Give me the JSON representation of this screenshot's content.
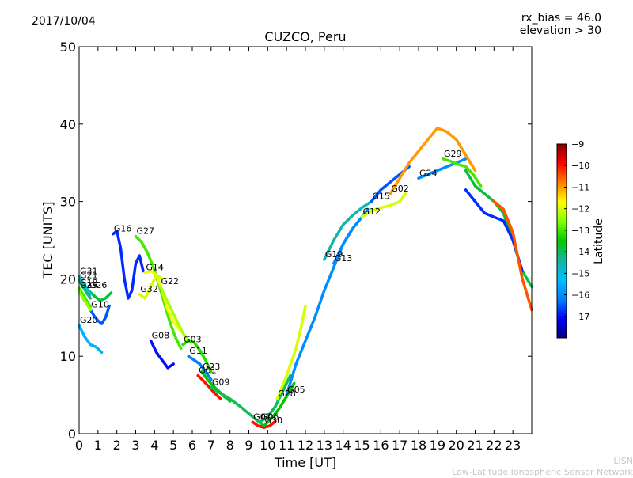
{
  "header": {
    "date": "2017/10/04",
    "title": "CUZCO, Peru",
    "rx_bias": "rx_bias = 46.0",
    "elevation": "elevation > 30"
  },
  "footer": {
    "org": "LISN",
    "org_full": "Low-Latitude Ionospheric Sensor Network"
  },
  "chart_data": {
    "type": "scatter",
    "xlabel": "Time [UT]",
    "ylabel": "TEC [UNITS]",
    "xlim": [
      0,
      24
    ],
    "ylim": [
      0,
      50
    ],
    "xticks": [
      0,
      1,
      2,
      3,
      4,
      5,
      6,
      7,
      8,
      9,
      10,
      11,
      12,
      13,
      14,
      15,
      16,
      17,
      18,
      19,
      20,
      21,
      22,
      23
    ],
    "yticks": [
      0,
      10,
      20,
      30,
      40,
      50
    ],
    "grid": false,
    "colorbar": {
      "label": "Latitude",
      "range": [
        -18,
        -9
      ],
      "ticks": [
        -9,
        -10,
        -11,
        -12,
        -13,
        -14,
        -15,
        -16,
        -17
      ],
      "colormap": [
        "#00007f",
        "#0000ff",
        "#007fff",
        "#00bfff",
        "#19b4a0",
        "#00c800",
        "#7fff00",
        "#ffff00",
        "#ff7f00",
        "#ff0000",
        "#7f0000"
      ]
    },
    "series": [
      {
        "name": "G20",
        "lat": -15.5,
        "x": [
          0.0,
          0.3,
          0.6,
          0.9,
          1.2
        ],
        "y": [
          14.0,
          12.5,
          11.5,
          11.2,
          10.5
        ]
      },
      {
        "name": "G10",
        "lat": -16.5,
        "x": [
          0.6,
          0.8,
          1.0,
          1.2,
          1.4,
          1.6
        ],
        "y": [
          16.0,
          15.2,
          14.6,
          14.2,
          15.0,
          16.5
        ]
      },
      {
        "name": "G26",
        "lat": -13.8,
        "x": [
          0.5,
          0.8,
          1.1,
          1.4,
          1.7
        ],
        "y": [
          18.5,
          17.8,
          17.2,
          17.5,
          18.2
        ]
      },
      {
        "name": "G31",
        "lat": -15.0,
        "x": [
          0.0,
          0.2,
          0.4,
          0.6
        ],
        "y": [
          20.3,
          19.5,
          18.8,
          18.0
        ]
      },
      {
        "name": "G21",
        "lat": -14.2,
        "x": [
          0.0,
          0.2,
          0.4,
          0.6
        ],
        "y": [
          19.8,
          19.0,
          18.2,
          17.5
        ]
      },
      {
        "name": "G18",
        "lat": -13.0,
        "x": [
          0.0,
          0.2,
          0.4,
          0.6
        ],
        "y": [
          18.8,
          18.0,
          17.2,
          16.4
        ]
      },
      {
        "name": "G25",
        "lat": -12.5,
        "x": [
          0.0,
          0.2,
          0.4,
          0.6
        ],
        "y": [
          18.5,
          17.5,
          16.8,
          16.0
        ]
      },
      {
        "name": "G16",
        "lat": -16.8,
        "x": [
          1.8,
          2.0,
          2.2,
          2.4,
          2.6,
          2.8,
          3.0,
          3.2,
          3.4
        ],
        "y": [
          25.8,
          26.2,
          24.0,
          20.0,
          17.5,
          18.5,
          22.0,
          23.0,
          21.0
        ]
      },
      {
        "name": "G27",
        "lat": -13.0,
        "x": [
          3.0,
          3.3,
          3.6,
          3.9,
          4.2,
          4.5,
          4.8,
          5.1,
          5.4
        ],
        "y": [
          25.5,
          24.8,
          23.5,
          21.8,
          19.5,
          17.0,
          14.5,
          12.5,
          11.0
        ]
      },
      {
        "name": "G14",
        "lat": -11.8,
        "x": [
          3.5,
          3.8,
          4.1,
          4.4,
          4.7,
          5.0,
          5.3
        ],
        "y": [
          20.8,
          21.0,
          20.5,
          18.5,
          16.0,
          14.5,
          13.5
        ]
      },
      {
        "name": "G32",
        "lat": -12.0,
        "x": [
          3.2,
          3.5,
          3.8,
          4.1,
          4.4
        ],
        "y": [
          18.0,
          17.5,
          19.0,
          20.5,
          20.0
        ]
      },
      {
        "name": "G22",
        "lat": -12.3,
        "x": [
          4.3,
          4.6,
          4.9,
          5.2,
          5.5,
          5.8
        ],
        "y": [
          19.0,
          17.5,
          16.0,
          14.5,
          13.0,
          12.0
        ]
      },
      {
        "name": "G08",
        "lat": -17.0,
        "x": [
          3.8,
          4.1,
          4.4,
          4.7,
          5.0
        ],
        "y": [
          12.0,
          10.5,
          9.5,
          8.5,
          9.0
        ]
      },
      {
        "name": "G03",
        "lat": -13.2,
        "x": [
          5.5,
          5.8,
          6.1,
          6.4,
          6.7,
          7.0
        ],
        "y": [
          11.5,
          12.0,
          11.8,
          10.8,
          9.5,
          8.0
        ]
      },
      {
        "name": "G11",
        "lat": -16.2,
        "x": [
          5.8,
          6.1,
          6.4,
          6.7,
          7.0
        ],
        "y": [
          10.0,
          9.5,
          9.0,
          8.0,
          7.0
        ]
      },
      {
        "name": "G01",
        "lat": -10.0,
        "x": [
          6.3,
          6.6,
          6.9,
          7.2,
          7.5
        ],
        "y": [
          7.5,
          6.8,
          6.0,
          5.2,
          4.5
        ]
      },
      {
        "name": "G23",
        "lat": -13.5,
        "x": [
          6.5,
          6.8,
          7.1,
          7.4,
          7.7,
          8.0
        ],
        "y": [
          8.0,
          7.0,
          6.2,
          5.5,
          4.8,
          4.2
        ]
      },
      {
        "name": "G09",
        "lat": -14.0,
        "x": [
          7.0,
          7.5,
          8.0,
          8.5,
          9.0,
          9.5,
          9.8
        ],
        "y": [
          6.0,
          5.2,
          4.5,
          3.6,
          2.6,
          1.6,
          1.0
        ]
      },
      {
        "name": "G07",
        "lat": -10.0,
        "x": [
          9.2,
          9.5,
          9.8,
          10.1,
          10.4
        ],
        "y": [
          1.5,
          1.0,
          0.8,
          1.0,
          1.6
        ]
      },
      {
        "name": "G06",
        "lat": -14.0,
        "x": [
          9.6,
          10.0,
          10.4,
          10.8,
          11.2
        ],
        "y": [
          1.5,
          2.2,
          3.5,
          5.5,
          7.5
        ]
      },
      {
        "name": "G30",
        "lat": -13.5,
        "x": [
          9.8,
          10.2,
          10.6,
          11.0,
          11.4
        ],
        "y": [
          1.0,
          2.0,
          3.2,
          4.8,
          6.5
        ]
      },
      {
        "name": "G28",
        "lat": -12.0,
        "x": [
          10.5,
          11.0,
          11.5,
          11.8,
          12.0
        ],
        "y": [
          4.5,
          7.5,
          11.0,
          14.0,
          16.5
        ]
      },
      {
        "name": "G05",
        "lat": -16.0,
        "x": [
          11.0,
          11.5,
          12.0,
          12.5,
          13.0,
          13.5,
          14.0,
          14.5,
          15.0
        ],
        "y": [
          5.0,
          9.0,
          12.0,
          15.0,
          18.5,
          21.5,
          24.5,
          26.5,
          28.0
        ]
      },
      {
        "name": "G13",
        "lat": -16.0,
        "x": [
          13.5,
          14.0,
          14.5,
          15.0,
          15.3
        ],
        "y": [
          22.0,
          24.5,
          26.5,
          28.0,
          29.0
        ]
      },
      {
        "name": "G19",
        "lat": -14.5,
        "x": [
          13.0,
          13.5,
          14.0,
          14.5,
          15.0,
          15.5
        ],
        "y": [
          22.5,
          25.0,
          27.0,
          28.2,
          29.2,
          30.0
        ]
      },
      {
        "name": "G12",
        "lat": -12.0,
        "x": [
          15.0,
          15.5,
          16.0,
          16.5,
          17.0,
          17.3
        ],
        "y": [
          28.0,
          28.8,
          29.2,
          29.5,
          30.0,
          31.0
        ]
      },
      {
        "name": "G15",
        "lat": -16.5,
        "x": [
          15.5,
          16.0,
          16.5,
          17.0,
          17.5
        ],
        "y": [
          30.0,
          31.5,
          32.5,
          33.5,
          34.5
        ]
      },
      {
        "name": "G24",
        "lat": -16.0,
        "x": [
          18.0,
          18.5,
          19.0,
          19.5,
          20.0,
          20.5
        ],
        "y": [
          33.0,
          33.5,
          34.0,
          34.5,
          35.0,
          35.5
        ]
      },
      {
        "name": "G02",
        "lat": -11.0,
        "x": [
          16.5,
          17.0,
          17.5,
          18.0,
          18.5,
          19.0,
          19.5,
          20.0,
          20.5,
          21.0
        ],
        "y": [
          31.0,
          33.0,
          35.0,
          36.5,
          38.0,
          39.5,
          39.0,
          38.0,
          36.0,
          34.0
        ]
      },
      {
        "name": "G29",
        "lat": -13.0,
        "x": [
          19.3,
          19.7,
          20.1,
          20.5,
          20.9,
          21.3
        ],
        "y": [
          35.5,
          35.2,
          34.8,
          34.5,
          33.5,
          32.0
        ]
      },
      {
        "name": "",
        "lat": -13.8,
        "x": [
          20.5,
          21.0,
          21.5,
          22.0,
          22.5,
          23.0,
          23.5,
          24.0
        ],
        "y": [
          34.0,
          32.0,
          31.0,
          30.0,
          28.5,
          25.0,
          21.0,
          19.0
        ]
      },
      {
        "name": "",
        "lat": -16.8,
        "x": [
          20.5,
          21.0,
          21.5,
          22.0,
          22.5,
          23.0,
          23.5
        ],
        "y": [
          31.5,
          30.0,
          28.5,
          28.0,
          27.5,
          25.0,
          21.0
        ]
      },
      {
        "name": "",
        "lat": -10.5,
        "x": [
          22.0,
          22.5,
          23.0,
          23.5,
          24.0
        ],
        "y": [
          30.0,
          29.0,
          26.0,
          20.0,
          16.0
        ]
      }
    ]
  }
}
